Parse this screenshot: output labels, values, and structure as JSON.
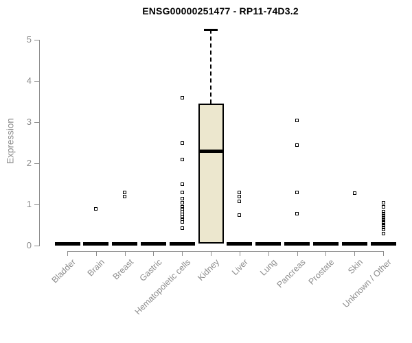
{
  "title": "ENSG00000251477 - RP11-74D3.2",
  "chart_data": {
    "type": "box",
    "title": "ENSG00000251477 - RP11-74D3.2",
    "xlabel": "",
    "ylabel": "Expression",
    "ylim": [
      0,
      5.3
    ],
    "yticks": [
      0,
      1,
      2,
      3,
      4,
      5
    ],
    "grid": false,
    "legend": false,
    "categories": [
      "Bladder",
      "Brain",
      "Breast",
      "Gastric",
      "Hematopoietic cells",
      "Kidney",
      "Liver",
      "Lung",
      "Pancreas",
      "Prostate",
      "Skin",
      "Unknown / Other"
    ],
    "boxes": [
      {
        "category": "Bladder",
        "q1": 0,
        "median": 0,
        "q3": 0,
        "whisker_low": 0,
        "whisker_high": 0,
        "outliers": []
      },
      {
        "category": "Brain",
        "q1": 0,
        "median": 0,
        "q3": 0,
        "whisker_low": 0,
        "whisker_high": 0,
        "outliers": [
          0.9
        ]
      },
      {
        "category": "Breast",
        "q1": 0,
        "median": 0,
        "q3": 0,
        "whisker_low": 0,
        "whisker_high": 0,
        "outliers": [
          1.2,
          1.3
        ]
      },
      {
        "category": "Gastric",
        "q1": 0,
        "median": 0,
        "q3": 0,
        "whisker_low": 0,
        "whisker_high": 0,
        "outliers": []
      },
      {
        "category": "Hematopoietic cells",
        "q1": 0,
        "median": 0,
        "q3": 0,
        "whisker_low": 0,
        "whisker_high": 0,
        "outliers": [
          3.6,
          2.5,
          2.1,
          1.5,
          1.3,
          1.15,
          1.05,
          0.95,
          0.9,
          0.82,
          0.76,
          0.7,
          0.64,
          0.58,
          0.42
        ]
      },
      {
        "category": "Kidney",
        "q1": 0.05,
        "median": 2.3,
        "q3": 3.45,
        "whisker_low": 0,
        "whisker_high": 5.25,
        "outliers": []
      },
      {
        "category": "Liver",
        "q1": 0,
        "median": 0,
        "q3": 0,
        "whisker_low": 0,
        "whisker_high": 0,
        "outliers": [
          1.3,
          1.2,
          1.08,
          0.75
        ]
      },
      {
        "category": "Lung",
        "q1": 0,
        "median": 0,
        "q3": 0,
        "whisker_low": 0,
        "whisker_high": 0,
        "outliers": []
      },
      {
        "category": "Pancreas",
        "q1": 0,
        "median": 0,
        "q3": 0,
        "whisker_low": 0,
        "whisker_high": 0,
        "outliers": [
          3.05,
          2.45,
          1.3,
          0.78
        ]
      },
      {
        "category": "Prostate",
        "q1": 0,
        "median": 0,
        "q3": 0,
        "whisker_low": 0,
        "whisker_high": 0,
        "outliers": []
      },
      {
        "category": "Skin",
        "q1": 0,
        "median": 0,
        "q3": 0,
        "whisker_low": 0,
        "whisker_high": 0,
        "outliers": [
          1.27
        ]
      },
      {
        "category": "Unknown / Other",
        "q1": 0,
        "median": 0,
        "q3": 0,
        "whisker_low": 0,
        "whisker_high": 0,
        "outliers": [
          1.05,
          0.95,
          0.82,
          0.77,
          0.72,
          0.68,
          0.63,
          0.58,
          0.54,
          0.5,
          0.45,
          0.4,
          0.3
        ]
      }
    ],
    "colors": {
      "box_fill": "#ece7ce",
      "stroke": "#000000",
      "axis": "#8c8c8c",
      "title": "#000000",
      "background": "#ffffff"
    }
  }
}
